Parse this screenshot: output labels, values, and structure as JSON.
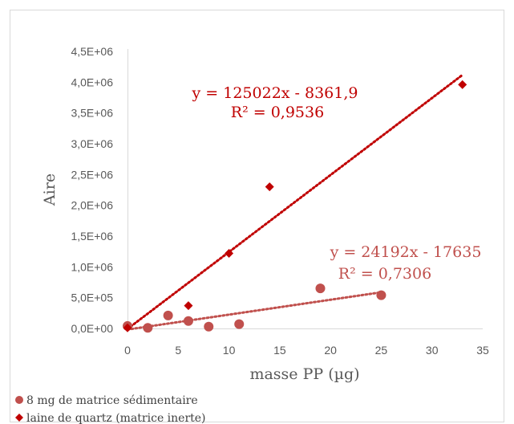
{
  "chart_data": {
    "type": "scatter",
    "xlabel": "masse PP (µg)",
    "ylabel": "Aire",
    "xlim": [
      0,
      35
    ],
    "ylim": [
      0,
      4500000
    ],
    "x_ticks": [
      "0",
      "5",
      "10",
      "15",
      "20",
      "25",
      "30",
      "35"
    ],
    "y_ticks": [
      "0,0E+00",
      "5,0E+05",
      "1,0E+06",
      "1,5E+06",
      "2,0E+06",
      "2,5E+06",
      "3,0E+06",
      "3,5E+06",
      "4,0E+06",
      "4,5E+06"
    ],
    "grid": false,
    "legend_position": "bottom-left",
    "series": [
      {
        "name": "8 mg de matrice sédimentaire",
        "marker": "circle",
        "color": "#c0504d",
        "points": [
          {
            "x": 0,
            "y": 40000
          },
          {
            "x": 2,
            "y": 10000
          },
          {
            "x": 4,
            "y": 210000
          },
          {
            "x": 6,
            "y": 120000
          },
          {
            "x": 8,
            "y": 30000
          },
          {
            "x": 11,
            "y": 70000
          },
          {
            "x": 19,
            "y": 650000
          },
          {
            "x": 25,
            "y": 540000
          }
        ],
        "trendline": {
          "slope": 24192,
          "intercept": -17635,
          "x_range": [
            0,
            25
          ],
          "equation": "y = 24192x - 17635",
          "r2": "R² = 0,7306"
        }
      },
      {
        "name": "laine de quartz (matrice inerte)",
        "marker": "diamond",
        "color": "#c00000",
        "points": [
          {
            "x": 0,
            "y": 10000
          },
          {
            "x": 6,
            "y": 370000
          },
          {
            "x": 10,
            "y": 1220000
          },
          {
            "x": 14,
            "y": 2300000
          },
          {
            "x": 33,
            "y": 3960000
          }
        ],
        "trendline": {
          "slope": 125022,
          "intercept": -8361.9,
          "x_range": [
            0,
            33
          ],
          "equation": "y = 125022x - 8361,9",
          "r2": "R² = 0,9536"
        }
      }
    ]
  }
}
